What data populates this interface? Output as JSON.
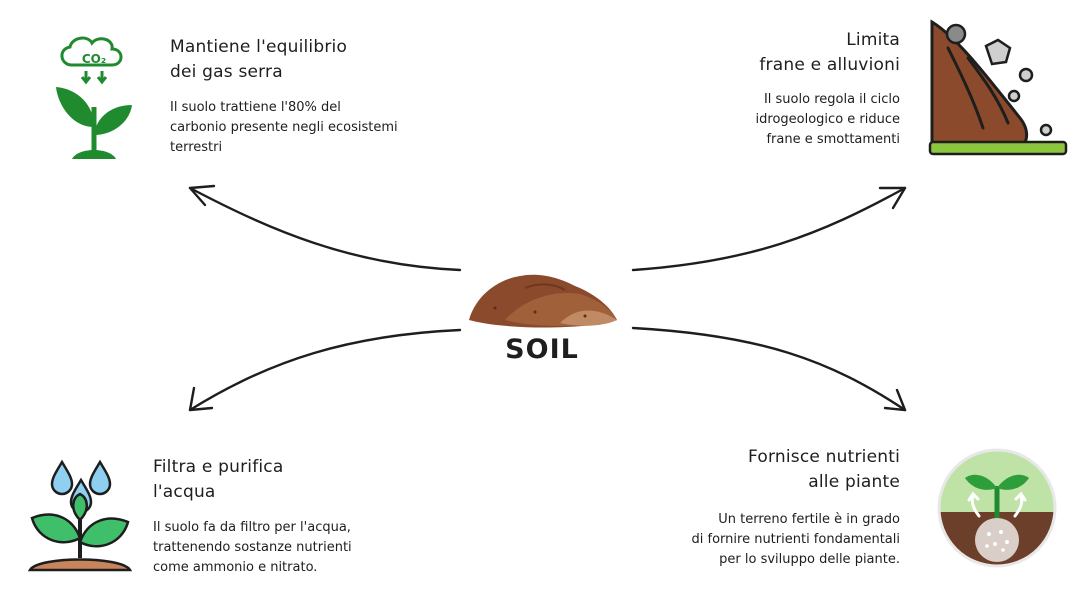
{
  "center": {
    "label": "SOIL"
  },
  "nodes": {
    "top_left": {
      "title_1": "Mantiene l'equilibrio",
      "title_2": "dei gas serra",
      "desc_1": "Il suolo trattiene l'80% del",
      "desc_2": "carbonio presente negli ecosistemi",
      "desc_3": "terrestri",
      "icon": "co2-plant-icon",
      "icon_text": "CO₂"
    },
    "top_right": {
      "title_1": "Limita",
      "title_2": "frane e alluvioni",
      "desc_1": "Il suolo regola il ciclo",
      "desc_2": "idrogeologico e riduce",
      "desc_3": "frane e smottamenti",
      "icon": "landslide-icon"
    },
    "bottom_left": {
      "title_1": "Filtra e purifica",
      "title_2": "l'acqua",
      "desc_1": "Il suolo fa da filtro per l'acqua,",
      "desc_2": "trattenendo sostanze nutrienti",
      "desc_3": "come ammonio e nitrato.",
      "icon": "watered-plant-icon"
    },
    "bottom_right": {
      "title_1": "Fornisce nutrienti",
      "title_2": "alle piante",
      "desc_1": "Un terreno fertile è in grado",
      "desc_2": "di fornire nutrienti fondamentali",
      "desc_3": "per lo sviluppo delle piante.",
      "icon": "plant-nutrients-icon"
    }
  },
  "colors": {
    "text": "#1e1e1e",
    "soil": "#8b4a2b",
    "plant_green": "#1f8a2e",
    "leaf_light": "#3fbf6a"
  }
}
